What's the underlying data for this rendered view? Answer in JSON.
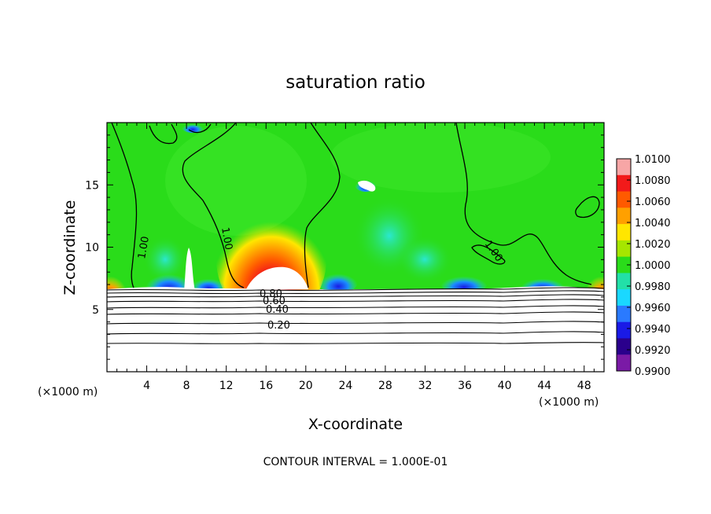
{
  "chart_data": {
    "type": "heatmap",
    "title": "saturation ratio",
    "xlabel": "X-coordinate",
    "ylabel": "Z-coordinate",
    "x_unit": "(×1000 m)",
    "z_unit": "(×1000 m)",
    "xlim": [
      0,
      50
    ],
    "ylim": [
      0,
      20
    ],
    "x_ticks": [
      "4",
      "8",
      "12",
      "16",
      "20",
      "24",
      "28",
      "32",
      "36",
      "40",
      "44",
      "48"
    ],
    "y_ticks": [
      "5",
      "10",
      "15"
    ],
    "colorbar": {
      "min": 0.99,
      "max": 1.01,
      "tick_labels": [
        "1.0100",
        "1.0080",
        "1.0060",
        "1.0040",
        "1.0020",
        "1.0000",
        "0.9980",
        "0.9960",
        "0.9940",
        "0.9920",
        "0.9900"
      ],
      "colors": [
        "#f7a6a6",
        "#f21a1a",
        "#ff5a00",
        "#ffa000",
        "#ffe600",
        "#a6e600",
        "#2adc1a",
        "#22e0a8",
        "#1ad8ff",
        "#2a7aff",
        "#1a1ae6",
        "#2a008c",
        "#7a1aa6"
      ]
    },
    "contour_labels": [
      "1.00",
      "1.00",
      "1.00",
      "0.80",
      "0.60",
      "0.40",
      "0.20"
    ],
    "surface_layer_levels": [
      0.2,
      0.4,
      0.6,
      0.8,
      1.0
    ],
    "footer": "CONTOUR INTERVAL = 1.000E-01"
  }
}
